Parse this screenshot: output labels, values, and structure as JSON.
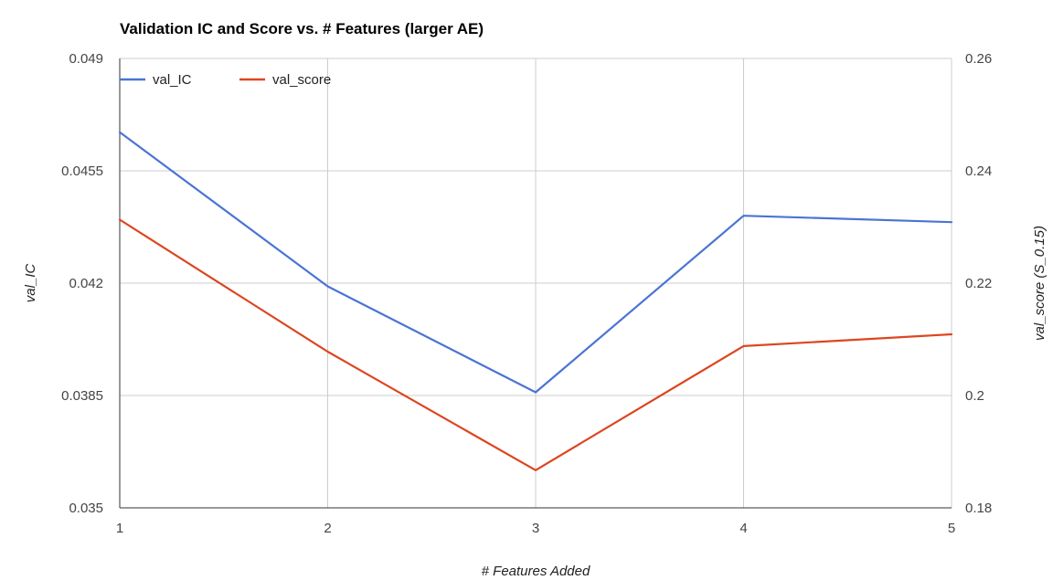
{
  "chart_data": {
    "type": "line",
    "title": "Validation IC and Score vs. # Features (larger AE)",
    "xlabel": "# Features Added",
    "ylabel_left": "val_IC",
    "ylabel_right": "val_score (S_0.15)",
    "x": [
      1,
      2,
      3,
      4,
      5
    ],
    "x_tick_labels": [
      "1",
      "2",
      "3",
      "4",
      "5"
    ],
    "ylim_left": [
      0.035,
      0.049
    ],
    "ylim_right": [
      0.18,
      0.26
    ],
    "y_ticks_left": [
      "0.035",
      "0.0385",
      "0.042",
      "0.0455",
      "0.049"
    ],
    "y_ticks_right": [
      "0.18",
      "0.2",
      "0.22",
      "0.24",
      "0.26"
    ],
    "grid": true,
    "legend_position": "top-left",
    "series": [
      {
        "name": "val_IC",
        "axis": "left",
        "color": "#4a74d4",
        "values": [
          0.0467,
          0.0419,
          0.0386,
          0.0441,
          0.0439
        ]
      },
      {
        "name": "val_score",
        "axis": "right",
        "color": "#dc4620",
        "values": [
          0.2313,
          0.2078,
          0.1867,
          0.2088,
          0.2109
        ]
      }
    ]
  }
}
